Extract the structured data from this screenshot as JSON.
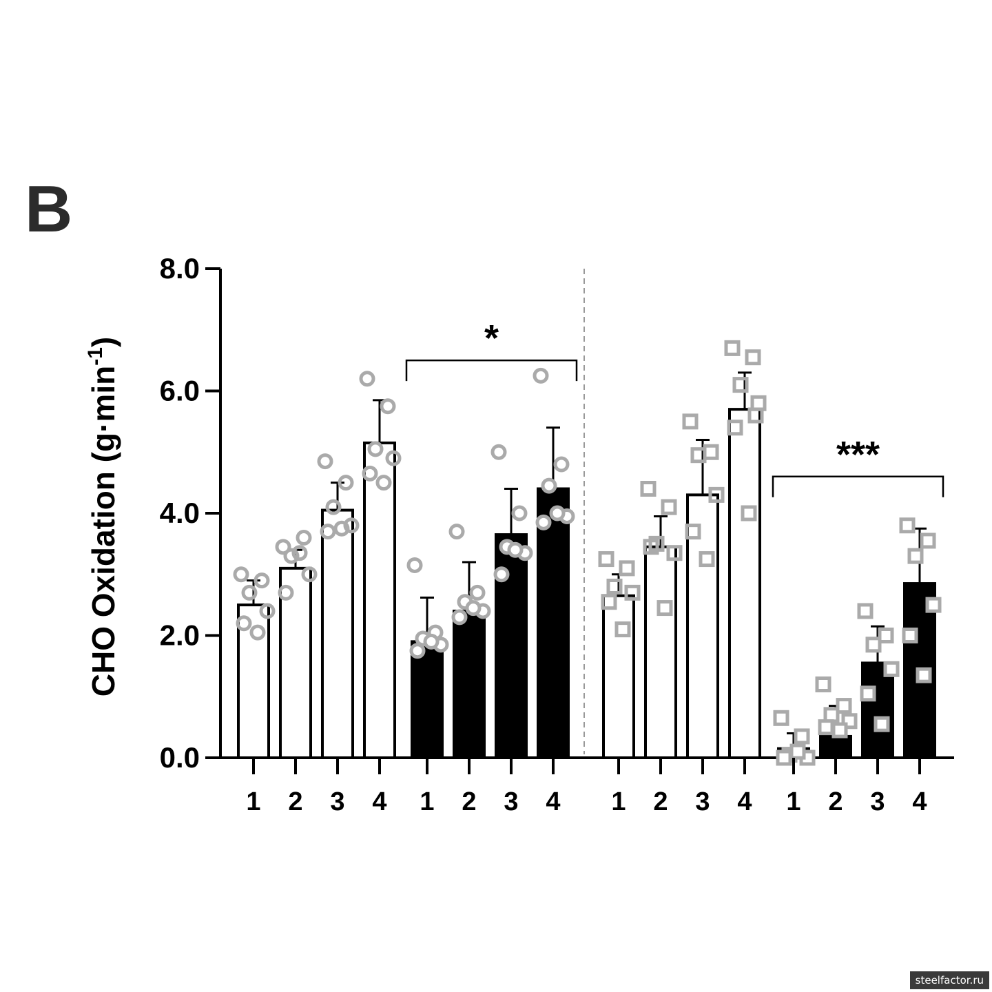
{
  "panel_label": "B",
  "watermark": "steelfactor.ru",
  "colors": {
    "open_bar": "#ffffff",
    "filled_bar": "#000000",
    "marker": "#aaaaaa",
    "axis": "#000000",
    "divider": "#999999"
  },
  "chart_data": {
    "type": "bar",
    "title": "",
    "ylabel": "CHO Oxidation (g·min",
    "ylabel_sup": "-1",
    "ylabel_close": ")",
    "ylim": [
      0,
      8
    ],
    "yticks": [
      "0.0",
      "2.0",
      "4.0",
      "6.0",
      "8.0"
    ],
    "ytick_values": [
      0,
      2,
      4,
      6,
      8
    ],
    "groups": [
      {
        "fill": "open",
        "marker": "circle",
        "bars": [
          {
            "label": "1",
            "value": 2.5,
            "sd_upper": 2.9,
            "points": [
              3.0,
              2.9,
              2.7,
              2.4,
              2.2,
              2.05
            ]
          },
          {
            "label": "2",
            "value": 3.1,
            "sd_upper": 3.4,
            "points": [
              3.45,
              3.6,
              3.3,
              3.0,
              2.7,
              3.35
            ]
          },
          {
            "label": "3",
            "value": 4.05,
            "sd_upper": 4.5,
            "points": [
              4.85,
              4.5,
              4.1,
              3.8,
              3.7,
              3.75
            ]
          },
          {
            "label": "4",
            "value": 5.15,
            "sd_upper": 5.85,
            "points": [
              6.2,
              5.75,
              5.05,
              4.9,
              4.65,
              4.5
            ]
          }
        ]
      },
      {
        "fill": "filled",
        "marker": "circle",
        "bars": [
          {
            "label": "1",
            "value": 1.9,
            "sd_upper": 2.62,
            "points": [
              3.15,
              2.05,
              1.95,
              1.85,
              1.75,
              1.9
            ]
          },
          {
            "label": "2",
            "value": 2.4,
            "sd_upper": 3.2,
            "points": [
              3.7,
              2.7,
              2.55,
              2.4,
              2.3,
              2.45
            ]
          },
          {
            "label": "3",
            "value": 3.65,
            "sd_upper": 4.4,
            "points": [
              5.0,
              4.0,
              3.45,
              3.35,
              3.0,
              3.4
            ]
          },
          {
            "label": "4",
            "value": 4.4,
            "sd_upper": 5.4,
            "points": [
              6.25,
              4.8,
              4.45,
              3.95,
              3.85,
              4.0
            ]
          }
        ]
      },
      {
        "fill": "open",
        "marker": "square",
        "bars": [
          {
            "label": "1",
            "value": 2.65,
            "sd_upper": 3.0,
            "points": [
              3.25,
              3.1,
              2.8,
              2.7,
              2.55,
              2.1
            ]
          },
          {
            "label": "2",
            "value": 3.45,
            "sd_upper": 3.95,
            "points": [
              4.4,
              4.1,
              3.5,
              3.35,
              3.45,
              2.45
            ]
          },
          {
            "label": "3",
            "value": 4.3,
            "sd_upper": 5.2,
            "points": [
              5.5,
              5.0,
              4.95,
              4.3,
              3.7,
              3.25
            ]
          },
          {
            "label": "4",
            "value": 5.7,
            "sd_upper": 6.3,
            "points": [
              6.7,
              6.55,
              6.1,
              5.8,
              5.4,
              4.0,
              5.6
            ]
          }
        ]
      },
      {
        "fill": "filled",
        "marker": "square",
        "bars": [
          {
            "label": "1",
            "value": 0.15,
            "sd_upper": 0.4,
            "points": [
              0.65,
              0.35,
              0.05,
              0.0,
              0.0,
              0.1
            ]
          },
          {
            "label": "2",
            "value": 0.35,
            "sd_upper": 0.85,
            "points": [
              1.2,
              0.85,
              0.7,
              0.6,
              0.5,
              0.45
            ]
          },
          {
            "label": "3",
            "value": 1.55,
            "sd_upper": 2.15,
            "points": [
              2.4,
              2.0,
              1.85,
              1.45,
              1.05,
              0.55
            ]
          },
          {
            "label": "4",
            "value": 2.85,
            "sd_upper": 3.75,
            "points": [
              3.8,
              3.55,
              3.3,
              2.5,
              2.0,
              1.35
            ]
          }
        ]
      }
    ],
    "annotations": [
      {
        "text": "*",
        "from_group": 1,
        "y": 6.5
      },
      {
        "text": "***",
        "from_group": 3,
        "y": 4.6
      }
    ],
    "divider_after_group": 1,
    "grid": false,
    "legend": "none"
  }
}
